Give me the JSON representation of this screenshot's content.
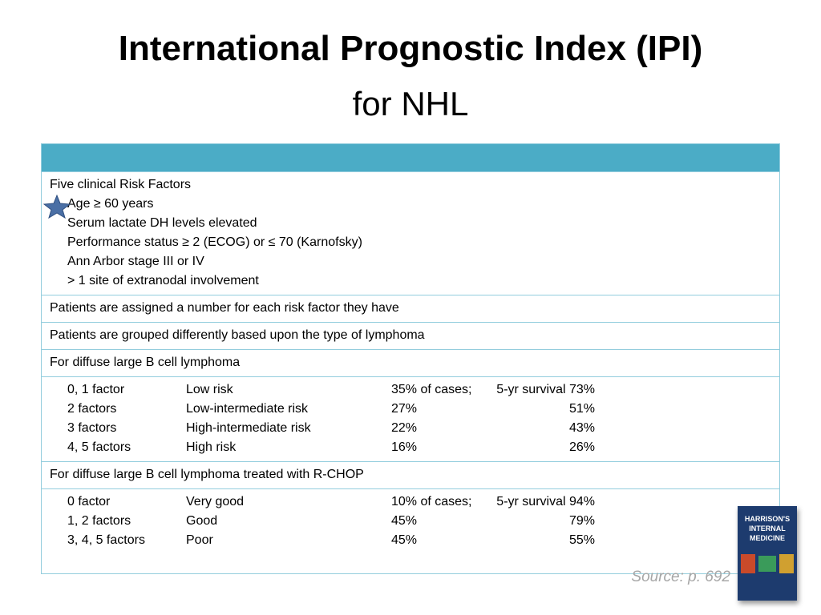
{
  "header": {
    "title": "International Prognostic Index (IPI)",
    "subtitle": "for NHL"
  },
  "table": {
    "risk_factors": {
      "heading": "Five clinical Risk Factors",
      "items": [
        "Age ≥ 60 years",
        "Serum lactate DH levels elevated",
        "Performance status ≥ 2 (ECOG) or ≤ 70 (Karnofsky)",
        "Ann Arbor stage III or IV",
        "> 1 site of extranodal involvement"
      ]
    },
    "assigned": "Patients are assigned a number for each risk factor they have",
    "grouped": "Patients are grouped differently based upon the type of lymphoma",
    "dlbcl": {
      "heading": "For diffuse large B cell lymphoma",
      "rows": [
        [
          "0, 1 factor",
          "Low risk",
          "35% of cases;",
          "5-yr survival 73%"
        ],
        [
          "2 factors",
          "Low-intermediate risk",
          "27%",
          "51%"
        ],
        [
          "3 factors",
          "High-intermediate risk",
          "22%",
          "43%"
        ],
        [
          "4, 5 factors",
          "High risk",
          "16%",
          "26%"
        ]
      ]
    },
    "rchop": {
      "heading": "For diffuse large B cell lymphoma treated with R-CHOP",
      "rows": [
        [
          "0 factor",
          "Very good",
          "10% of cases;",
          "5-yr survival 94%"
        ],
        [
          "1, 2 factors",
          "Good",
          "45%",
          "79%"
        ],
        [
          "3, 4, 5 factors",
          "Poor",
          "45%",
          "55%"
        ]
      ]
    }
  },
  "source": "Source: p. 692",
  "book": {
    "lines": [
      "HARRISON'S",
      "INTERNAL",
      "MEDICINE"
    ]
  }
}
